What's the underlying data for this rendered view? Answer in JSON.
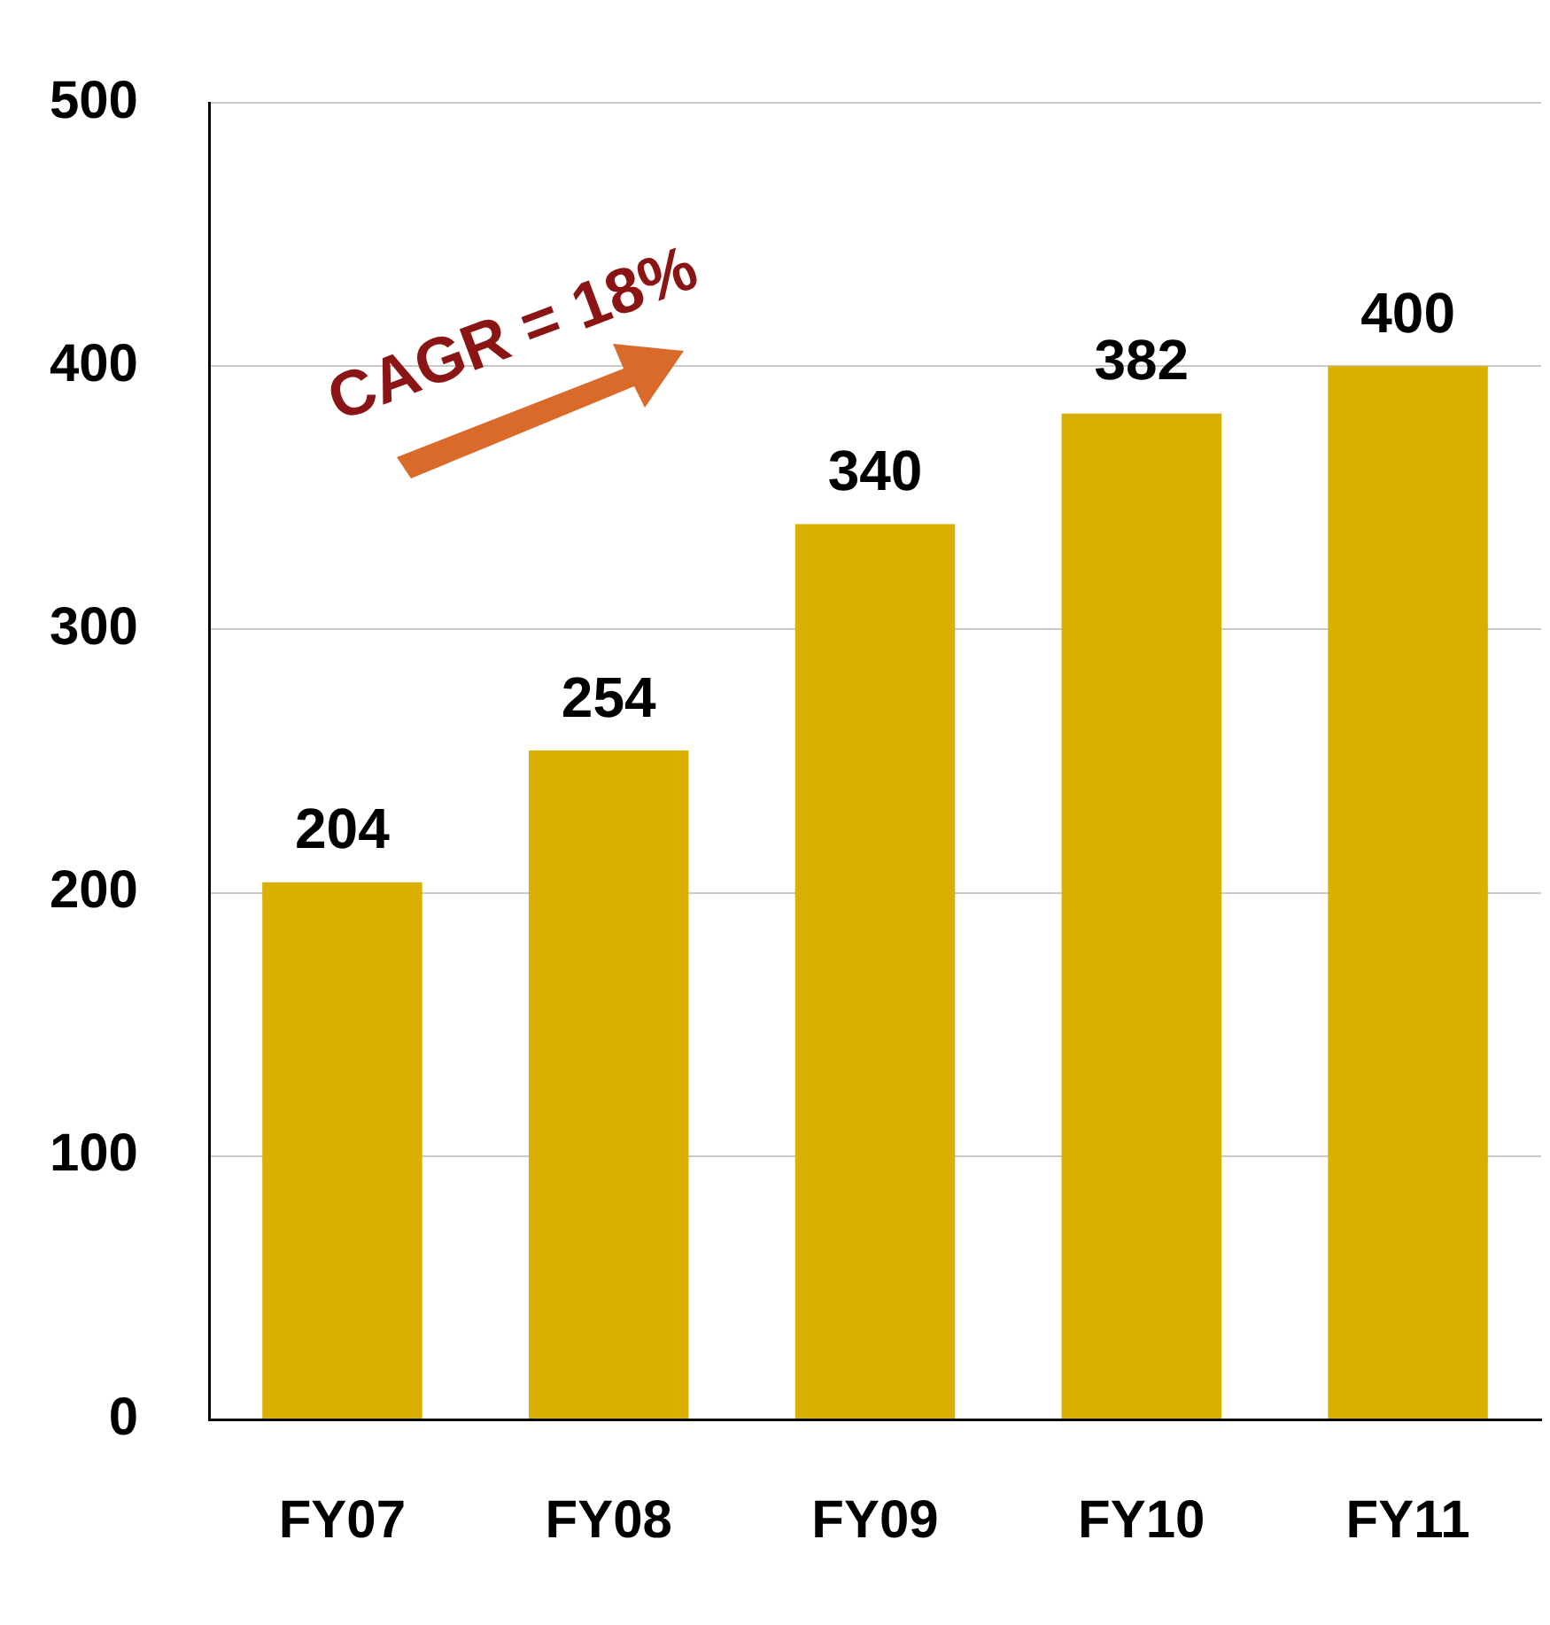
{
  "chart_data": {
    "type": "bar",
    "categories": [
      "FY07",
      "FY08",
      "FY09",
      "FY10",
      "FY11"
    ],
    "values": [
      204,
      254,
      340,
      382,
      400
    ],
    "color": "#d9b000",
    "ylim": [
      0,
      500
    ],
    "yticks": [
      0,
      100,
      200,
      300,
      400,
      500
    ],
    "grid": "y",
    "data_labels": true,
    "annotations": [
      "CAGR = 18%"
    ]
  }
}
